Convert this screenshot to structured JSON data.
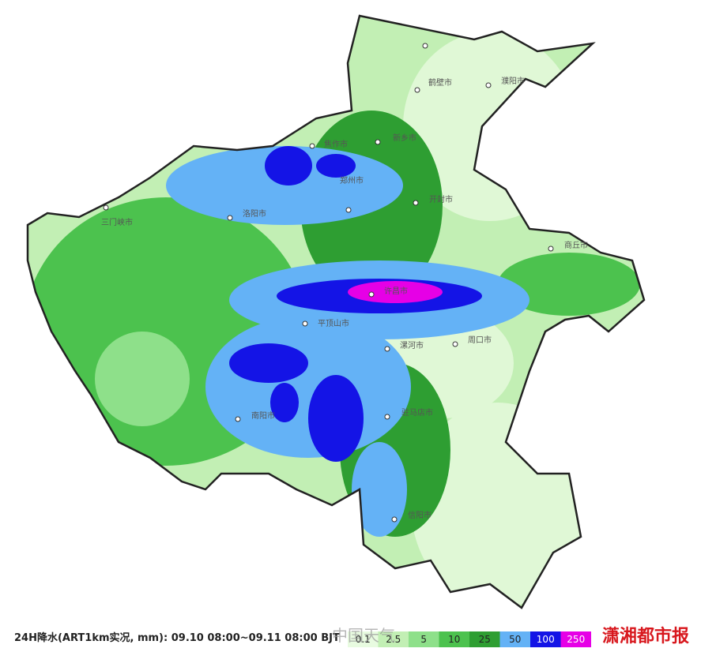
{
  "title": "24H降水(ART1km实况, mm): 09.10 08:00~09.11 08:00 BJT",
  "cities": [
    "鹤壁市",
    "濮阳市",
    "焦作市",
    "新乡市",
    "郑州市",
    "开封市",
    "三门峡市",
    "洛阳市",
    "商丘市",
    "许昌市",
    "平顶山市",
    "漯河市",
    "周口市",
    "南阳市",
    "驻马店市",
    "信阳市"
  ],
  "legend": [
    {
      "label": "0.1",
      "color": "#e8fbe0"
    },
    {
      "label": "2.5",
      "color": "#c2efb4"
    },
    {
      "label": "5",
      "color": "#8ee08a"
    },
    {
      "label": "10",
      "color": "#4cc24e"
    },
    {
      "label": "25",
      "color": "#2e9e32"
    },
    {
      "label": "50",
      "color": "#64b2f6"
    },
    {
      "label": "100",
      "color": "#1414e6"
    },
    {
      "label": "250",
      "color": "#e600e6"
    }
  ],
  "watermark": "中国天气",
  "logo": "潇湘都市报"
}
